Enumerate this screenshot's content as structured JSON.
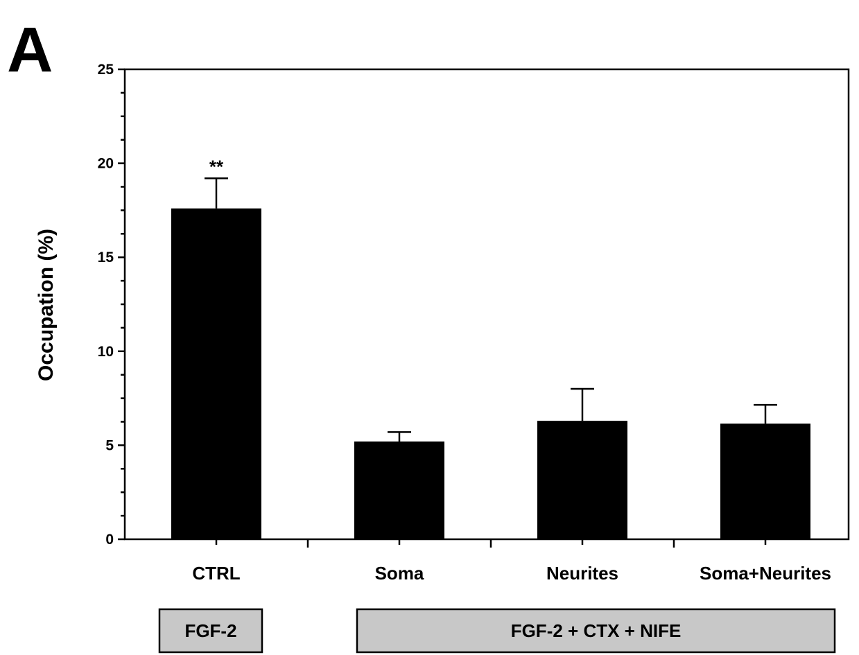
{
  "panel_label": "A",
  "chart_data": {
    "type": "bar",
    "title": "",
    "xlabel": "",
    "ylabel": "Occupation (%)",
    "ylim": [
      0,
      25
    ],
    "yticks": [
      0,
      5,
      10,
      15,
      20,
      25
    ],
    "grid": false,
    "categories": [
      "CTRL",
      "Soma",
      "Neurites",
      "Soma+Neurites"
    ],
    "values": [
      17.6,
      5.2,
      6.3,
      6.15
    ],
    "errors": [
      1.6,
      0.5,
      1.7,
      1.0
    ],
    "annotations": [
      {
        "category": "CTRL",
        "text": "**"
      }
    ],
    "groups": [
      {
        "label": "FGF-2",
        "categories": [
          "CTRL"
        ]
      },
      {
        "label": "FGF-2 + CTX + NIFE",
        "categories": [
          "Soma",
          "Neurites",
          "Soma+Neurites"
        ]
      }
    ],
    "colors": {
      "bar": "#000000",
      "group_box": "#c8c8c8"
    }
  }
}
